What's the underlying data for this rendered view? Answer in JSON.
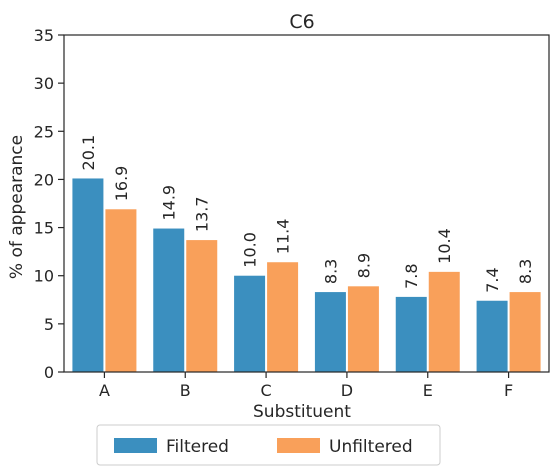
{
  "chart_data": {
    "type": "bar",
    "title": "C6",
    "xlabel": "Substituent",
    "ylabel": "% of appearance",
    "categories": [
      "A",
      "B",
      "C",
      "D",
      "E",
      "F"
    ],
    "series": [
      {
        "name": "Filtered",
        "values": [
          20.1,
          14.9,
          10.0,
          8.3,
          7.8,
          7.4
        ],
        "labels": [
          "20.1",
          "14.9",
          "10.0",
          "8.3",
          "7.8",
          "7.4"
        ],
        "color": "#3b8fbf"
      },
      {
        "name": "Unfiltered",
        "values": [
          16.9,
          13.7,
          11.4,
          8.9,
          10.4,
          8.3
        ],
        "labels": [
          "16.9",
          "13.7",
          "11.4",
          "8.9",
          "10.4",
          "8.3"
        ],
        "color": "#f9a05a"
      }
    ],
    "ylim": [
      0,
      35
    ],
    "yticks": [
      0,
      5,
      10,
      15,
      20,
      25,
      30,
      35
    ],
    "grid": false,
    "legend": "bottom-center"
  }
}
